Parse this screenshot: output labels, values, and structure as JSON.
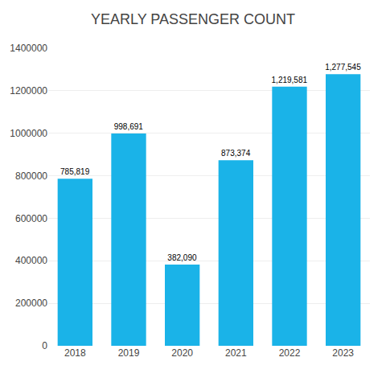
{
  "chart_data": {
    "type": "bar",
    "title": "YEARLY PASSENGER COUNT",
    "categories": [
      "2018",
      "2019",
      "2020",
      "2021",
      "2022",
      "2023"
    ],
    "values": [
      785819,
      998691,
      382090,
      873374,
      1219581,
      1277545
    ],
    "value_labels": [
      "785,819",
      "998,691",
      "382,090",
      "873,374",
      "1,219,581",
      "1,277,545"
    ],
    "color": "#1ab3e8",
    "ylim": [
      0,
      1400000
    ],
    "yticks": [
      0,
      200000,
      400000,
      600000,
      800000,
      1000000,
      1200000,
      1400000
    ],
    "grid": true,
    "data_labels": true
  }
}
